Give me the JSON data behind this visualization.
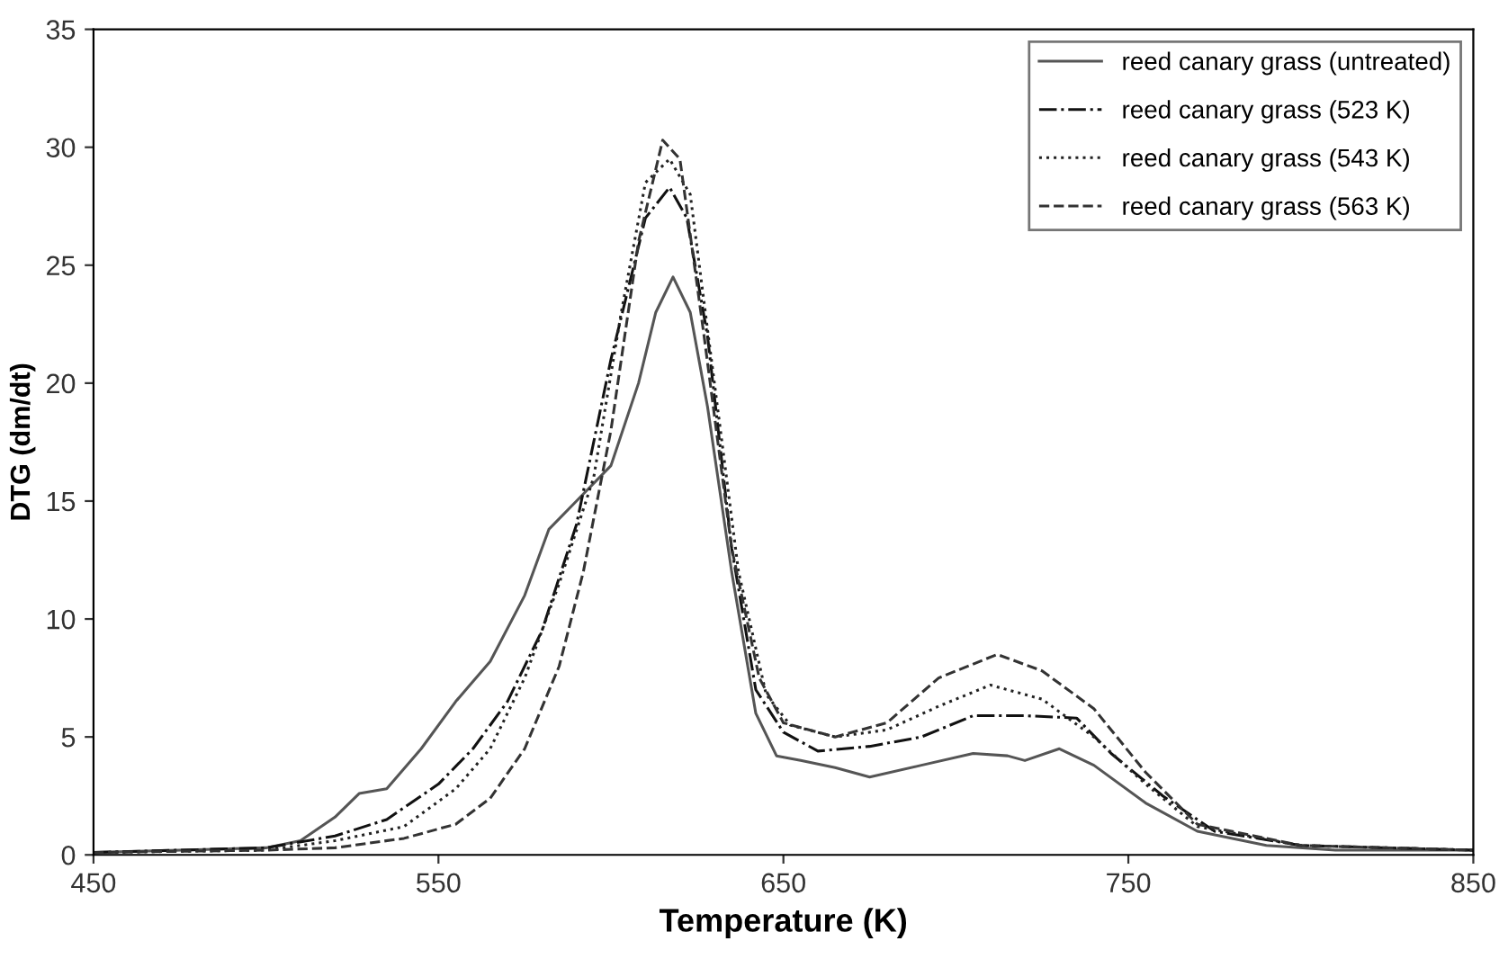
{
  "chart_data": {
    "type": "line",
    "xlabel": "Temperature (K)",
    "ylabel": "DTG (dm/dt)",
    "xlim": [
      450,
      850
    ],
    "xticks": [
      450,
      550,
      650,
      750,
      850
    ],
    "ylim": [
      0,
      35
    ],
    "yticks": [
      0,
      5,
      10,
      15,
      20,
      25,
      30,
      35
    ],
    "grid": false,
    "legend": "top right",
    "marker": "none",
    "series": [
      {
        "name": "reed canary grass (untreated)",
        "color": "#555555",
        "line_style": "solid",
        "x": [
          450,
          500,
          510,
          520,
          527,
          535,
          545,
          555,
          565,
          575,
          582,
          590,
          600,
          608,
          613,
          618,
          623,
          628,
          635,
          642,
          648,
          655,
          665,
          675,
          690,
          705,
          715,
          720,
          730,
          740,
          755,
          770,
          790,
          810,
          850
        ],
        "values": [
          0.1,
          0.3,
          0.6,
          1.6,
          2.6,
          2.8,
          4.5,
          6.5,
          8.2,
          11,
          13.8,
          15,
          16.5,
          20,
          23,
          24.5,
          23,
          19,
          12,
          6,
          4.2,
          4,
          3.7,
          3.3,
          3.8,
          4.3,
          4.2,
          4,
          4.5,
          3.8,
          2.2,
          1,
          0.4,
          0.2,
          0.2
        ]
      },
      {
        "name": "reed canary grass (523 K)",
        "color": "#111111",
        "line_style": "dashdot",
        "x": [
          450,
          500,
          520,
          535,
          550,
          560,
          570,
          580,
          590,
          600,
          610,
          617,
          622,
          628,
          635,
          642,
          650,
          660,
          675,
          690,
          705,
          720,
          735,
          745,
          760,
          775,
          800,
          850
        ],
        "values": [
          0.1,
          0.3,
          0.8,
          1.5,
          3,
          4.5,
          6.5,
          9.5,
          14,
          21,
          27,
          28.3,
          27,
          22,
          13,
          7,
          5.2,
          4.4,
          4.6,
          5,
          5.9,
          5.9,
          5.8,
          4.3,
          2.5,
          1,
          0.4,
          0.2
        ]
      },
      {
        "name": "reed canary grass (543 K)",
        "color": "#222222",
        "line_style": "dotted",
        "x": [
          450,
          500,
          520,
          540,
          555,
          565,
          575,
          585,
          595,
          603,
          610,
          617,
          623,
          630,
          637,
          645,
          652,
          665,
          680,
          695,
          710,
          725,
          740,
          755,
          770,
          800,
          850
        ],
        "values": [
          0.1,
          0.2,
          0.6,
          1.2,
          2.8,
          4.5,
          7.5,
          11.5,
          16,
          23,
          28.5,
          29.5,
          28,
          20,
          12,
          6.8,
          5.5,
          5,
          5.3,
          6.3,
          7.2,
          6.6,
          5,
          3,
          1.2,
          0.4,
          0.2
        ]
      },
      {
        "name": "reed canary grass (563 K)",
        "color": "#333333",
        "line_style": "dashed",
        "x": [
          450,
          500,
          520,
          540,
          555,
          565,
          575,
          585,
          592,
          600,
          608,
          615,
          620,
          627,
          635,
          643,
          650,
          665,
          680,
          695,
          712,
          725,
          740,
          755,
          770,
          800,
          850
        ],
        "values": [
          0.1,
          0.2,
          0.3,
          0.7,
          1.3,
          2.4,
          4.5,
          8,
          12,
          18,
          26,
          30.3,
          29.5,
          22,
          13,
          7.5,
          5.6,
          5,
          5.6,
          7.5,
          8.5,
          7.8,
          6.2,
          3.5,
          1.3,
          0.4,
          0.2
        ]
      }
    ]
  }
}
